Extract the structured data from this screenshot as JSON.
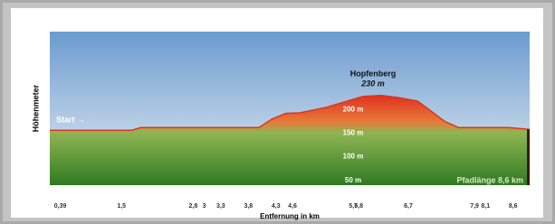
{
  "chart_data": {
    "type": "area",
    "y_label": "Höhenmeter",
    "x_label": "Entfernung in km",
    "annotations": {
      "start": "Start →",
      "peak_name": "Hopfenberg",
      "peak_height": "230 m",
      "length": "Pfadlänge 8,6 km"
    },
    "x": [
      0.2,
      1.68,
      1.85,
      3.99,
      4.23,
      4.48,
      4.73,
      5.22,
      5.88,
      6.21,
      6.54,
      6.87,
      7.36,
      7.61,
      8.52,
      8.9
    ],
    "values": [
      156,
      156,
      162,
      162,
      180,
      192,
      193,
      205,
      228,
      230,
      225,
      218,
      175,
      162,
      162,
      158
    ],
    "xlim": [
      0.2,
      8.9
    ],
    "ylim": [
      40,
      365
    ],
    "xticks": [
      {
        "value": 0.39,
        "label": "0,39"
      },
      {
        "value": 1.5,
        "label": "1,5"
      },
      {
        "value": 2.8,
        "label": "2,8"
      },
      3,
      {
        "value": 3.3,
        "label": "3,3"
      },
      {
        "value": 3.8,
        "label": "3,8"
      },
      {
        "value": 4.3,
        "label": "4,3"
      },
      {
        "value": 4.6,
        "label": "4,6"
      },
      {
        "value": 5.7,
        "label": "5,7"
      },
      {
        "value": 5.8,
        "label": "5,8"
      },
      {
        "value": 6.7,
        "label": "6,7"
      },
      {
        "value": 7.9,
        "label": "7,9"
      },
      {
        "value": 8.1,
        "label": "8,1"
      },
      {
        "value": 8.6,
        "label": "8,6"
      }
    ],
    "yticks": [
      {
        "value": 200,
        "label": "200 m"
      },
      {
        "value": 150,
        "label": "150 m"
      },
      {
        "value": 100,
        "label": "100 m"
      },
      {
        "value": 50,
        "label": "50 m"
      }
    ],
    "grid": false
  }
}
